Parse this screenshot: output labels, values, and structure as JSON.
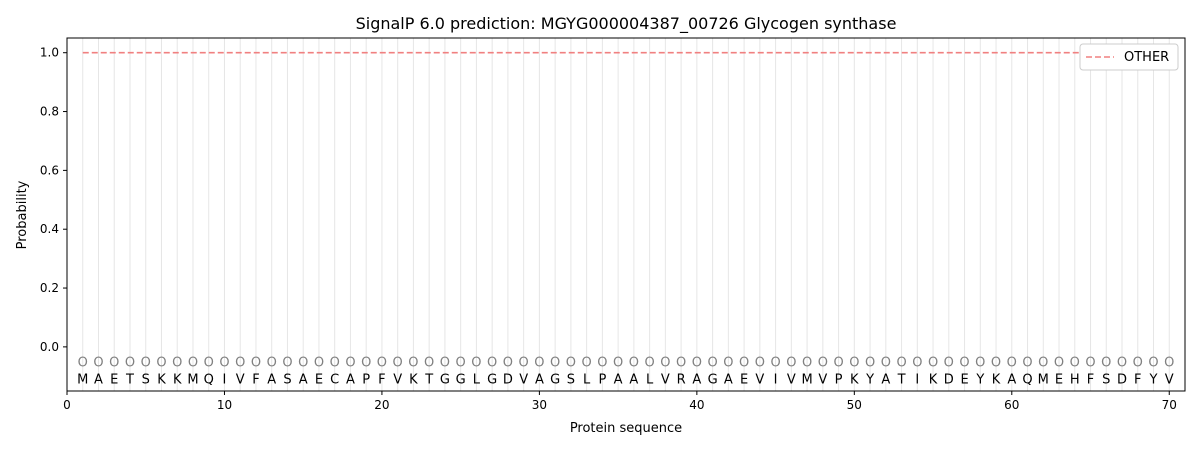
{
  "chart_data": {
    "type": "line",
    "title": "SignalP 6.0 prediction: MGYG000004387_00726 Glycogen synthase",
    "xlabel": "Protein sequence",
    "ylabel": "Probability",
    "xlim": [
      0,
      71
    ],
    "ylim": [
      -0.15,
      1.05
    ],
    "xticks": [
      0,
      10,
      20,
      30,
      40,
      50,
      60,
      70
    ],
    "yticks": [
      0.0,
      0.2,
      0.4,
      0.6,
      0.8,
      1.0
    ],
    "ytick_labels": [
      "0.0",
      "0.2",
      "0.4",
      "0.6",
      "0.8",
      "1.0"
    ],
    "grid": "vertical per residue",
    "legend_position": "top-right",
    "sequence": [
      "M",
      "A",
      "E",
      "T",
      "S",
      "K",
      "K",
      "M",
      "Q",
      "I",
      "V",
      "F",
      "A",
      "S",
      "A",
      "E",
      "C",
      "A",
      "P",
      "F",
      "V",
      "K",
      "T",
      "G",
      "G",
      "L",
      "G",
      "D",
      "V",
      "A",
      "G",
      "S",
      "L",
      "P",
      "A",
      "A",
      "L",
      "V",
      "R",
      "A",
      "G",
      "A",
      "E",
      "V",
      "I",
      "V",
      "M",
      "V",
      "P",
      "K",
      "Y",
      "A",
      "T",
      "I",
      "K",
      "D",
      "E",
      "Y",
      "K",
      "A",
      "Q",
      "M",
      "E",
      "H",
      "F",
      "S",
      "D",
      "F",
      "Y",
      "V"
    ],
    "region_marker": "O",
    "series": [
      {
        "name": "OTHER",
        "color": "#f08080",
        "style": "dashed",
        "x_range": [
          1,
          70
        ],
        "value": 1.0
      }
    ]
  }
}
